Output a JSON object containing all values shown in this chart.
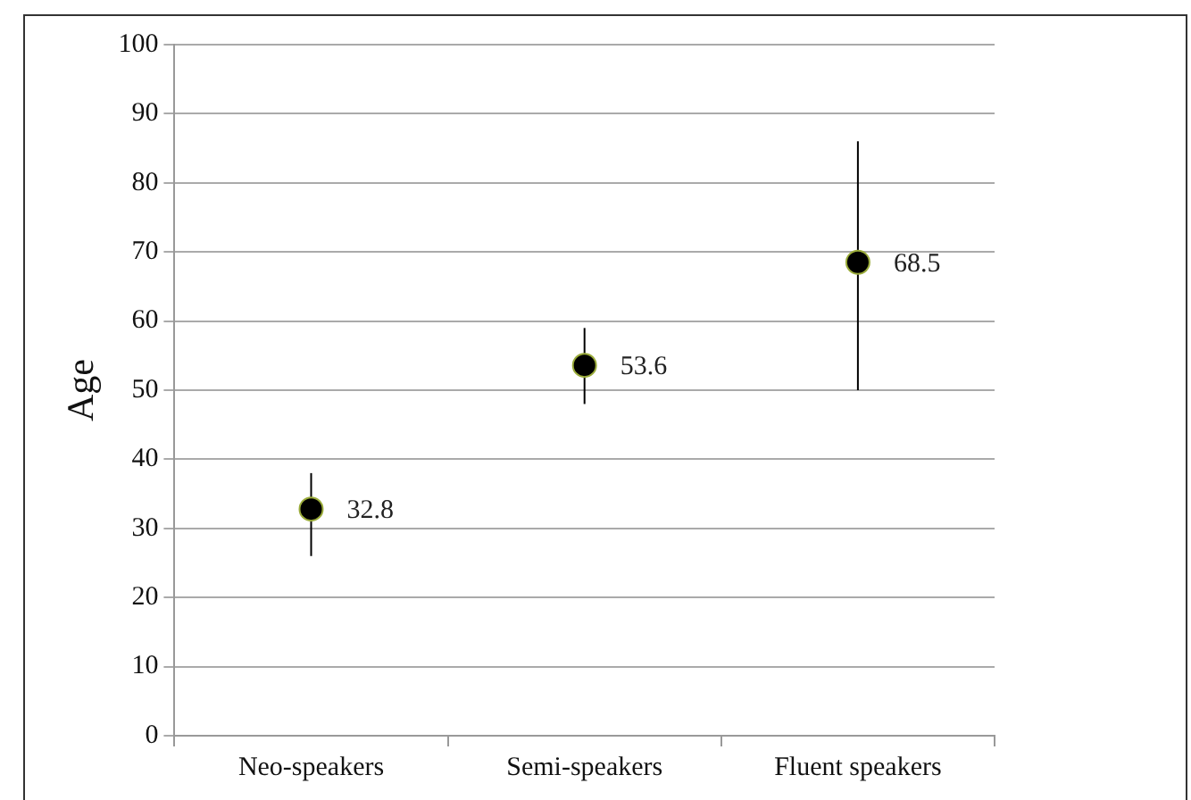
{
  "chart_data": {
    "type": "scatter",
    "ylabel": "Age",
    "categories": [
      "Neo-speakers",
      "Semi-speakers",
      "Fluent speakers"
    ],
    "series": [
      {
        "color": "#000000",
        "values": [
          32.8,
          53.6,
          68.5
        ],
        "errors": [
          [
            26,
            38
          ],
          [
            48,
            59
          ],
          [
            50,
            86
          ]
        ]
      }
    ],
    "ylim": [
      0,
      100
    ],
    "yticks": [
      0,
      10,
      20,
      30,
      40,
      50,
      60,
      70,
      80,
      90,
      100
    ],
    "grid": "y",
    "legend": false,
    "marker": "circle",
    "data_labels": true
  }
}
